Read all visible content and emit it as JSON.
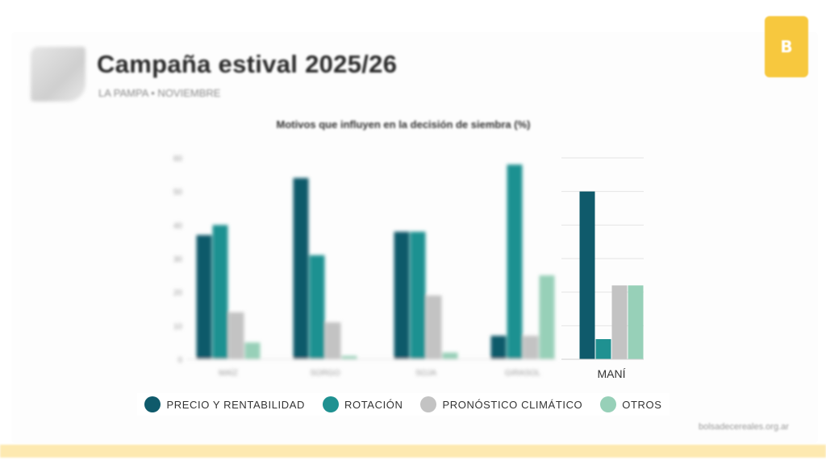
{
  "header": {
    "title": "Campaña estival 2025/26",
    "subtitle": "LA PAMPA • NOVIEMBRE"
  },
  "badge": {
    "label": "B",
    "color": "#f7c83e"
  },
  "footer": {
    "link": "bolsadecereales.org.ar"
  },
  "legend": {
    "items": [
      {
        "label": "PRECIO Y RENTABILIDAD",
        "color": "#0f5a6b"
      },
      {
        "label": "ROTACIÓN",
        "color": "#1f9191"
      },
      {
        "label": "PRONÓSTICO CLIMÁTICO",
        "color": "#c3c3c3"
      },
      {
        "label": "OTROS",
        "color": "#97d0b8"
      }
    ]
  },
  "chart_data": {
    "type": "bar",
    "title": "Motivos que influyen en la decisión de siembra (%)",
    "categories": [
      "MAÍZ",
      "SORGO",
      "SOJA",
      "GIRASOL",
      "MANÍ"
    ],
    "focused_category": "MANÍ",
    "ylim": [
      0,
      60
    ],
    "yticks": [
      "0",
      "10",
      "20",
      "30",
      "40",
      "50",
      "60"
    ],
    "grid": true,
    "legend_position": "bottom",
    "series": [
      {
        "name": "PRECIO Y RENTABILIDAD",
        "color": "#0f5a6b",
        "values": [
          37,
          54,
          38,
          7,
          50
        ]
      },
      {
        "name": "ROTACIÓN",
        "color": "#1f9191",
        "values": [
          40,
          31,
          38,
          58,
          6
        ]
      },
      {
        "name": "PRONÓSTICO CLIMÁTICO",
        "color": "#c3c3c3",
        "values": [
          14,
          11,
          19,
          7,
          22
        ]
      },
      {
        "name": "OTROS",
        "color": "#97d0b8",
        "values": [
          5,
          1,
          2,
          25,
          22
        ]
      }
    ]
  }
}
